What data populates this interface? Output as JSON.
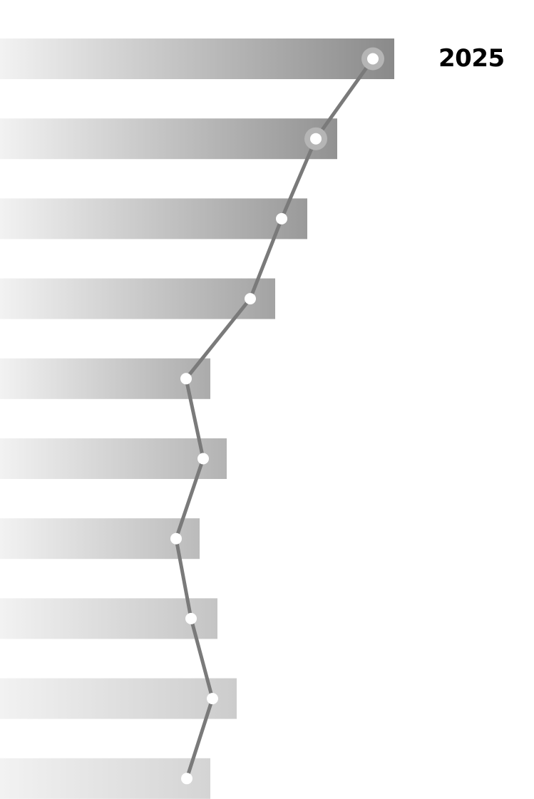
{
  "label": "2025",
  "chart_data": {
    "type": "bar",
    "orientation": "horizontal",
    "title": "",
    "xlabel": "",
    "ylabel": "",
    "grid": false,
    "legend": "none",
    "bar_values": [
      553,
      473,
      431,
      386,
      295,
      318,
      280,
      305,
      332,
      295
    ],
    "line_values": [
      523,
      443,
      395,
      351,
      261,
      285,
      247,
      268,
      298,
      262
    ],
    "highlighted_points": [
      0,
      1
    ],
    "xlim": [
      0,
      749
    ],
    "colors": {
      "bar_dark": "#8a8a8a",
      "bar_light": "#f2f2f2",
      "line": "#7a7a7a",
      "marker": "#ffffff",
      "halo": "#b5b5b5"
    }
  }
}
